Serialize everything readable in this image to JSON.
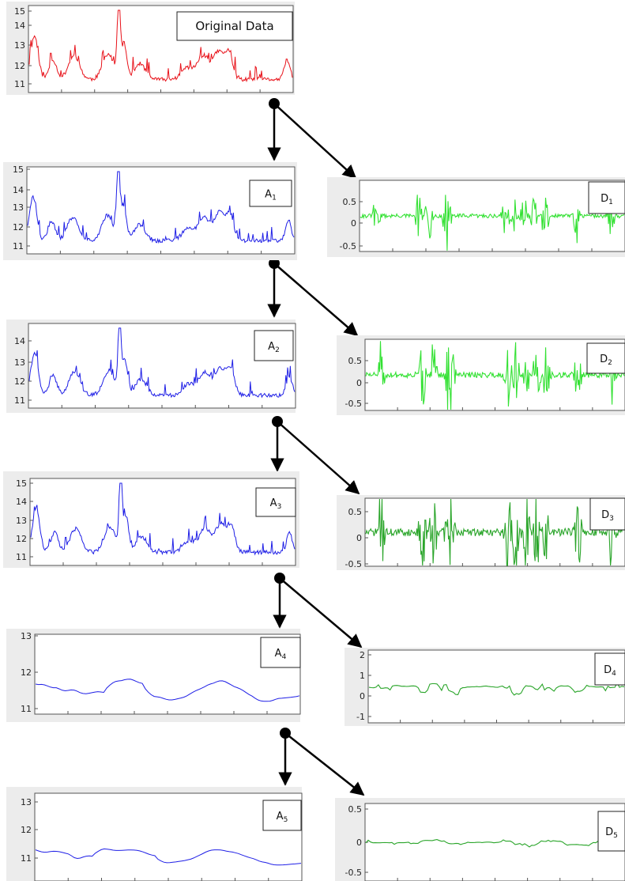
{
  "diagram": {
    "type": "wavelet-decomposition-tree",
    "colors": {
      "original": "#e8121a",
      "approximation": "#1f1fe6",
      "detail_bright": "#33e133",
      "detail_dark": "#2aa52a",
      "arrow": "#000000",
      "panel_bg": "#ececec"
    }
  },
  "plots": [
    {
      "name": "original",
      "label": "Original Data",
      "sub": "",
      "yticks": [
        "15",
        "14",
        "13",
        "12",
        "11"
      ]
    },
    {
      "name": "a1",
      "label": "A",
      "sub": "1",
      "yticks": [
        "15",
        "14",
        "13",
        "12",
        "11"
      ]
    },
    {
      "name": "d1",
      "label": "D",
      "sub": "1",
      "yticks": [
        "0.5",
        "0",
        "-0.5"
      ]
    },
    {
      "name": "a2",
      "label": "A",
      "sub": "2",
      "yticks": [
        "14",
        "13",
        "12",
        "11"
      ]
    },
    {
      "name": "d2",
      "label": "D",
      "sub": "2",
      "yticks": [
        "0.5",
        "0",
        "-0.5"
      ]
    },
    {
      "name": "a3",
      "label": "A",
      "sub": "3",
      "yticks": [
        "15",
        "14",
        "13",
        "12",
        "11"
      ]
    },
    {
      "name": "d3",
      "label": "D",
      "sub": "3",
      "yticks": [
        "0.5",
        "0",
        "-0.5"
      ]
    },
    {
      "name": "a4",
      "label": "A",
      "sub": "4",
      "yticks": [
        "13",
        "12",
        "11"
      ]
    },
    {
      "name": "d4",
      "label": "D",
      "sub": "4",
      "yticks": [
        "2",
        "1",
        "0",
        "-1"
      ]
    },
    {
      "name": "a5",
      "label": "A",
      "sub": "5",
      "yticks": [
        "13",
        "12",
        "11"
      ]
    },
    {
      "name": "d5",
      "label": "D",
      "sub": "5",
      "yticks": [
        "0.5",
        "0",
        "-0.5"
      ]
    }
  ]
}
